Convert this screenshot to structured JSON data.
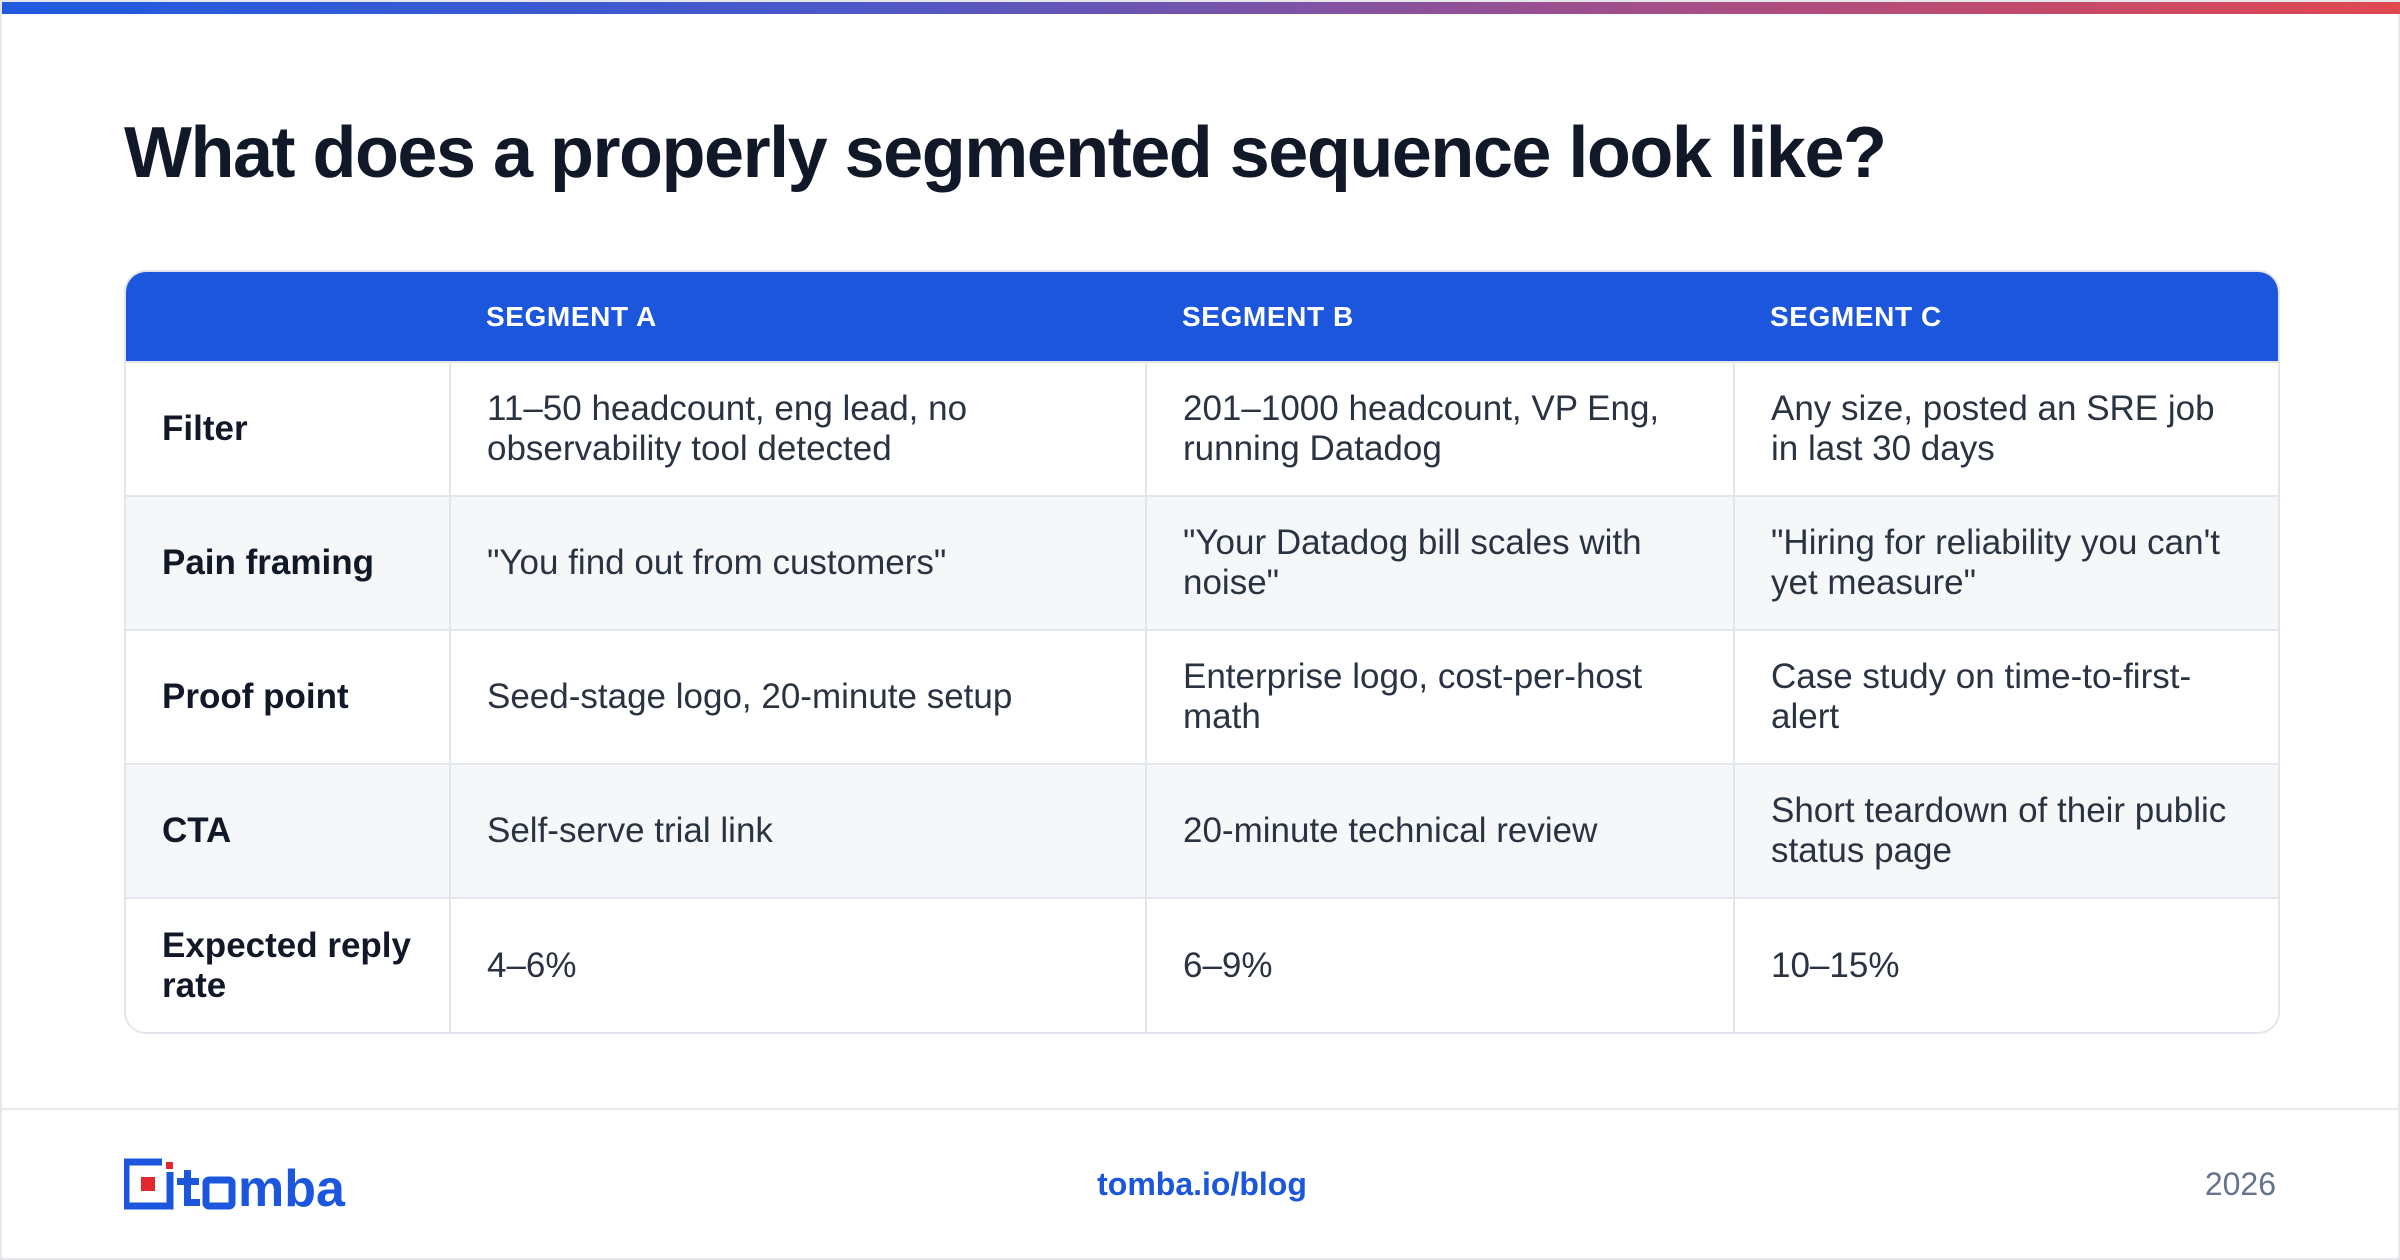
{
  "title": "What does a properly segmented sequence look like?",
  "colors": {
    "accent_blue": "#1b56dc",
    "gradient_start": "#1f5be0",
    "gradient_end": "#e0474f",
    "logo_red": "#e3262f"
  },
  "table": {
    "headers": [
      "",
      "SEGMENT A",
      "SEGMENT B",
      "SEGMENT C"
    ],
    "rows": [
      {
        "label": "Filter",
        "a": "11–50 headcount, eng lead, no observability tool detected",
        "b": "201–1000 headcount, VP Eng, running Datadog",
        "c": "Any size, posted an SRE job in last 30 days"
      },
      {
        "label": "Pain framing",
        "a": "\"You find out from customers\"",
        "b": "\"Your Datadog bill scales with noise\"",
        "c": "\"Hiring for reliability you can't yet measure\""
      },
      {
        "label": "Proof point",
        "a": "Seed-stage logo, 20-minute setup",
        "b": "Enterprise logo, cost-per-host math",
        "c": "Case study on time-to-first-alert"
      },
      {
        "label": "CTA",
        "a": "Self-serve trial link",
        "b": "20-minute technical review",
        "c": "Short teardown of their public status page"
      },
      {
        "label": "Expected reply rate",
        "a": "4–6%",
        "b": "6–9%",
        "c": "10–15%"
      }
    ]
  },
  "footer": {
    "logo_text": "tomba",
    "logo_icon": "tomba-logo-icon",
    "link": "tomba.io/blog",
    "year": "2026"
  }
}
